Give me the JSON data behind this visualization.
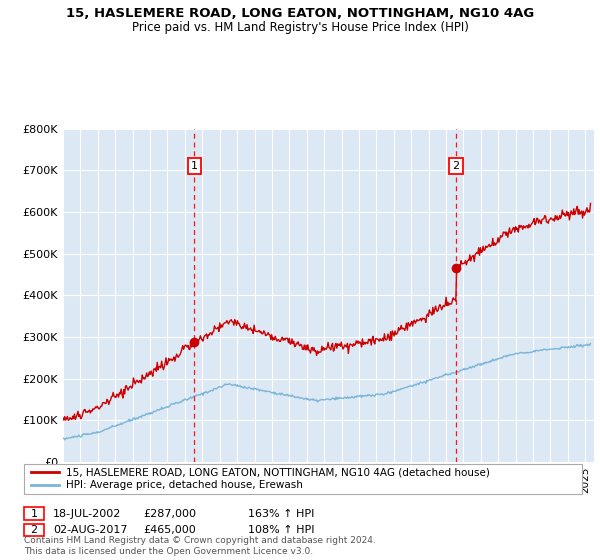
{
  "title1": "15, HASLEMERE ROAD, LONG EATON, NOTTINGHAM, NG10 4AG",
  "title2": "Price paid vs. HM Land Registry's House Price Index (HPI)",
  "legend_line1": "15, HASLEMERE ROAD, LONG EATON, NOTTINGHAM, NG10 4AG (detached house)",
  "legend_line2": "HPI: Average price, detached house, Erewash",
  "footer": "Contains HM Land Registry data © Crown copyright and database right 2024.\nThis data is licensed under the Open Government Licence v3.0.",
  "sale1_date": "18-JUL-2002",
  "sale1_price": "£287,000",
  "sale1_hpi": "163% ↑ HPI",
  "sale2_date": "02-AUG-2017",
  "sale2_price": "£465,000",
  "sale2_hpi": "108% ↑ HPI",
  "sale1_year": 2002.54,
  "sale1_value": 287000,
  "sale2_year": 2017.58,
  "sale2_value": 465000,
  "hpi_color": "#7ab5d8",
  "price_color": "#cc0000",
  "bg_color": "#dce9f5",
  "grid_color": "#ffffff",
  "ylim": [
    0,
    800000
  ],
  "xlim_start": 1995.0,
  "xlim_end": 2025.5
}
